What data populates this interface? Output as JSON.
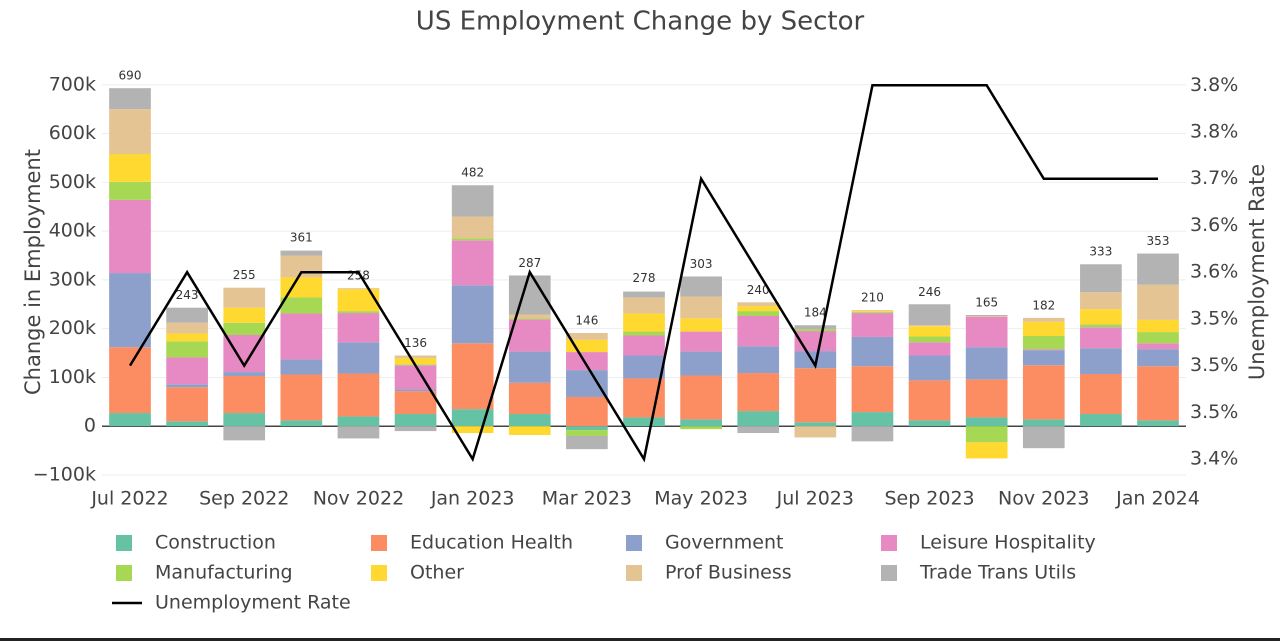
{
  "chart_data": {
    "type": "bar",
    "stacked": true,
    "title": "US Employment Change by Sector",
    "y_label": "Change in Employment",
    "y2_label": "Unemployment Rate",
    "categories": [
      "Jul 2022",
      null,
      "Sep 2022",
      null,
      "Nov 2022",
      null,
      "Jan 2023",
      null,
      "Mar 2023",
      null,
      "May 2023",
      null,
      "Jul 2023",
      null,
      "Sep 2023",
      null,
      "Nov 2023",
      null,
      "Jan 2024"
    ],
    "ylim": [
      -100000,
      720000
    ],
    "yticks": [
      {
        "value": -100000,
        "label": "−100k"
      },
      {
        "value": 0,
        "label": "0"
      },
      {
        "value": 100000,
        "label": "100k"
      },
      {
        "value": 200000,
        "label": "200k"
      },
      {
        "value": 300000,
        "label": "300k"
      },
      {
        "value": 400000,
        "label": "400k"
      },
      {
        "value": 500000,
        "label": "500k"
      },
      {
        "value": 600000,
        "label": "600k"
      },
      {
        "value": 700000,
        "label": "700k"
      }
    ],
    "y2lim": [
      3.383,
      3.811
    ],
    "y2ticks": [
      {
        "value": 3.4,
        "label": "3.4%"
      },
      {
        "value": 3.45,
        "label": "3.5%"
      },
      {
        "value": 3.5,
        "label": "3.5%"
      },
      {
        "value": 3.55,
        "label": "3.5%"
      },
      {
        "value": 3.6,
        "label": "3.6%"
      },
      {
        "value": 3.65,
        "label": "3.6%"
      },
      {
        "value": 3.7,
        "label": "3.7%"
      },
      {
        "value": 3.75,
        "label": "3.8%"
      },
      {
        "value": 3.8,
        "label": "3.8%"
      }
    ],
    "grid": true,
    "series": [
      {
        "name": "Construction",
        "color": "#66c2a5",
        "values": [
          27000,
          10000,
          27000,
          12000,
          20000,
          25000,
          35000,
          25000,
          -8000,
          18000,
          14000,
          31000,
          8000,
          29000,
          12000,
          18000,
          14000,
          25000,
          12000
        ]
      },
      {
        "name": "Education Health",
        "color": "#fc8d62",
        "values": [
          135000,
          70000,
          76000,
          94000,
          88000,
          47000,
          135000,
          64000,
          60000,
          80000,
          90000,
          78000,
          111000,
          94000,
          82000,
          78000,
          111000,
          82000,
          111000
        ]
      },
      {
        "name": "Government",
        "color": "#8da0cb",
        "values": [
          152000,
          6000,
          8000,
          31000,
          64000,
          4000,
          119000,
          64000,
          55000,
          47000,
          49000,
          55000,
          35000,
          60000,
          51000,
          66000,
          31000,
          53000,
          35000
        ]
      },
      {
        "name": "Leisure Hospitality",
        "color": "#e78ac3",
        "values": [
          150000,
          55000,
          76000,
          94000,
          60000,
          49000,
          92000,
          66000,
          37000,
          41000,
          41000,
          62000,
          41000,
          49000,
          27000,
          62000,
          2000,
          43000,
          12000
        ]
      },
      {
        "name": "Manufacturing",
        "color": "#a6d854",
        "values": [
          37000,
          33000,
          25000,
          33000,
          4000,
          2000,
          4000,
          2000,
          -12000,
          8000,
          -6000,
          10000,
          4000,
          2000,
          12000,
          -33000,
          27000,
          6000,
          23000
        ]
      },
      {
        "name": "Other",
        "color": "#ffd92f",
        "values": [
          57000,
          16000,
          31000,
          41000,
          45000,
          12000,
          -14000,
          -18000,
          25000,
          37000,
          27000,
          10000,
          0,
          2000,
          21000,
          -33000,
          29000,
          31000,
          25000
        ]
      },
      {
        "name": "Prof Business",
        "color": "#e5c494",
        "values": [
          92000,
          22000,
          41000,
          45000,
          2000,
          6000,
          45000,
          8000,
          14000,
          33000,
          45000,
          8000,
          -23000,
          2000,
          2000,
          2000,
          8000,
          35000,
          72000
        ]
      },
      {
        "name": "Trade Trans Utils",
        "color": "#b3b3b3",
        "values": [
          43000,
          31000,
          -29000,
          10000,
          -25000,
          -10000,
          64000,
          80000,
          -27000,
          12000,
          41000,
          -14000,
          8000,
          -31000,
          43000,
          2000,
          -45000,
          57000,
          64000
        ]
      },
      {
        "name": "Unemployment Rate",
        "type": "line",
        "axis": "y2",
        "color": "#000000",
        "values": [
          3.5,
          3.6,
          3.5,
          3.6,
          3.6,
          3.5,
          3.4,
          3.6,
          3.5,
          3.4,
          3.7,
          3.6,
          3.5,
          3.8,
          3.8,
          3.8,
          3.7,
          3.7,
          3.7
        ]
      }
    ],
    "totals": {
      "values": [
        690000,
        243000,
        255000,
        361000,
        258000,
        136000,
        482000,
        287000,
        146000,
        278000,
        303000,
        240000,
        184000,
        210000,
        246000,
        165000,
        182000,
        333000,
        353000
      ],
      "value_labels": [
        "690",
        "243",
        "255",
        "361",
        "258",
        "136",
        "482",
        "287",
        "146",
        "278",
        "303",
        "240",
        "184",
        "210",
        "246",
        "165",
        "182",
        "333",
        "353"
      ]
    }
  }
}
